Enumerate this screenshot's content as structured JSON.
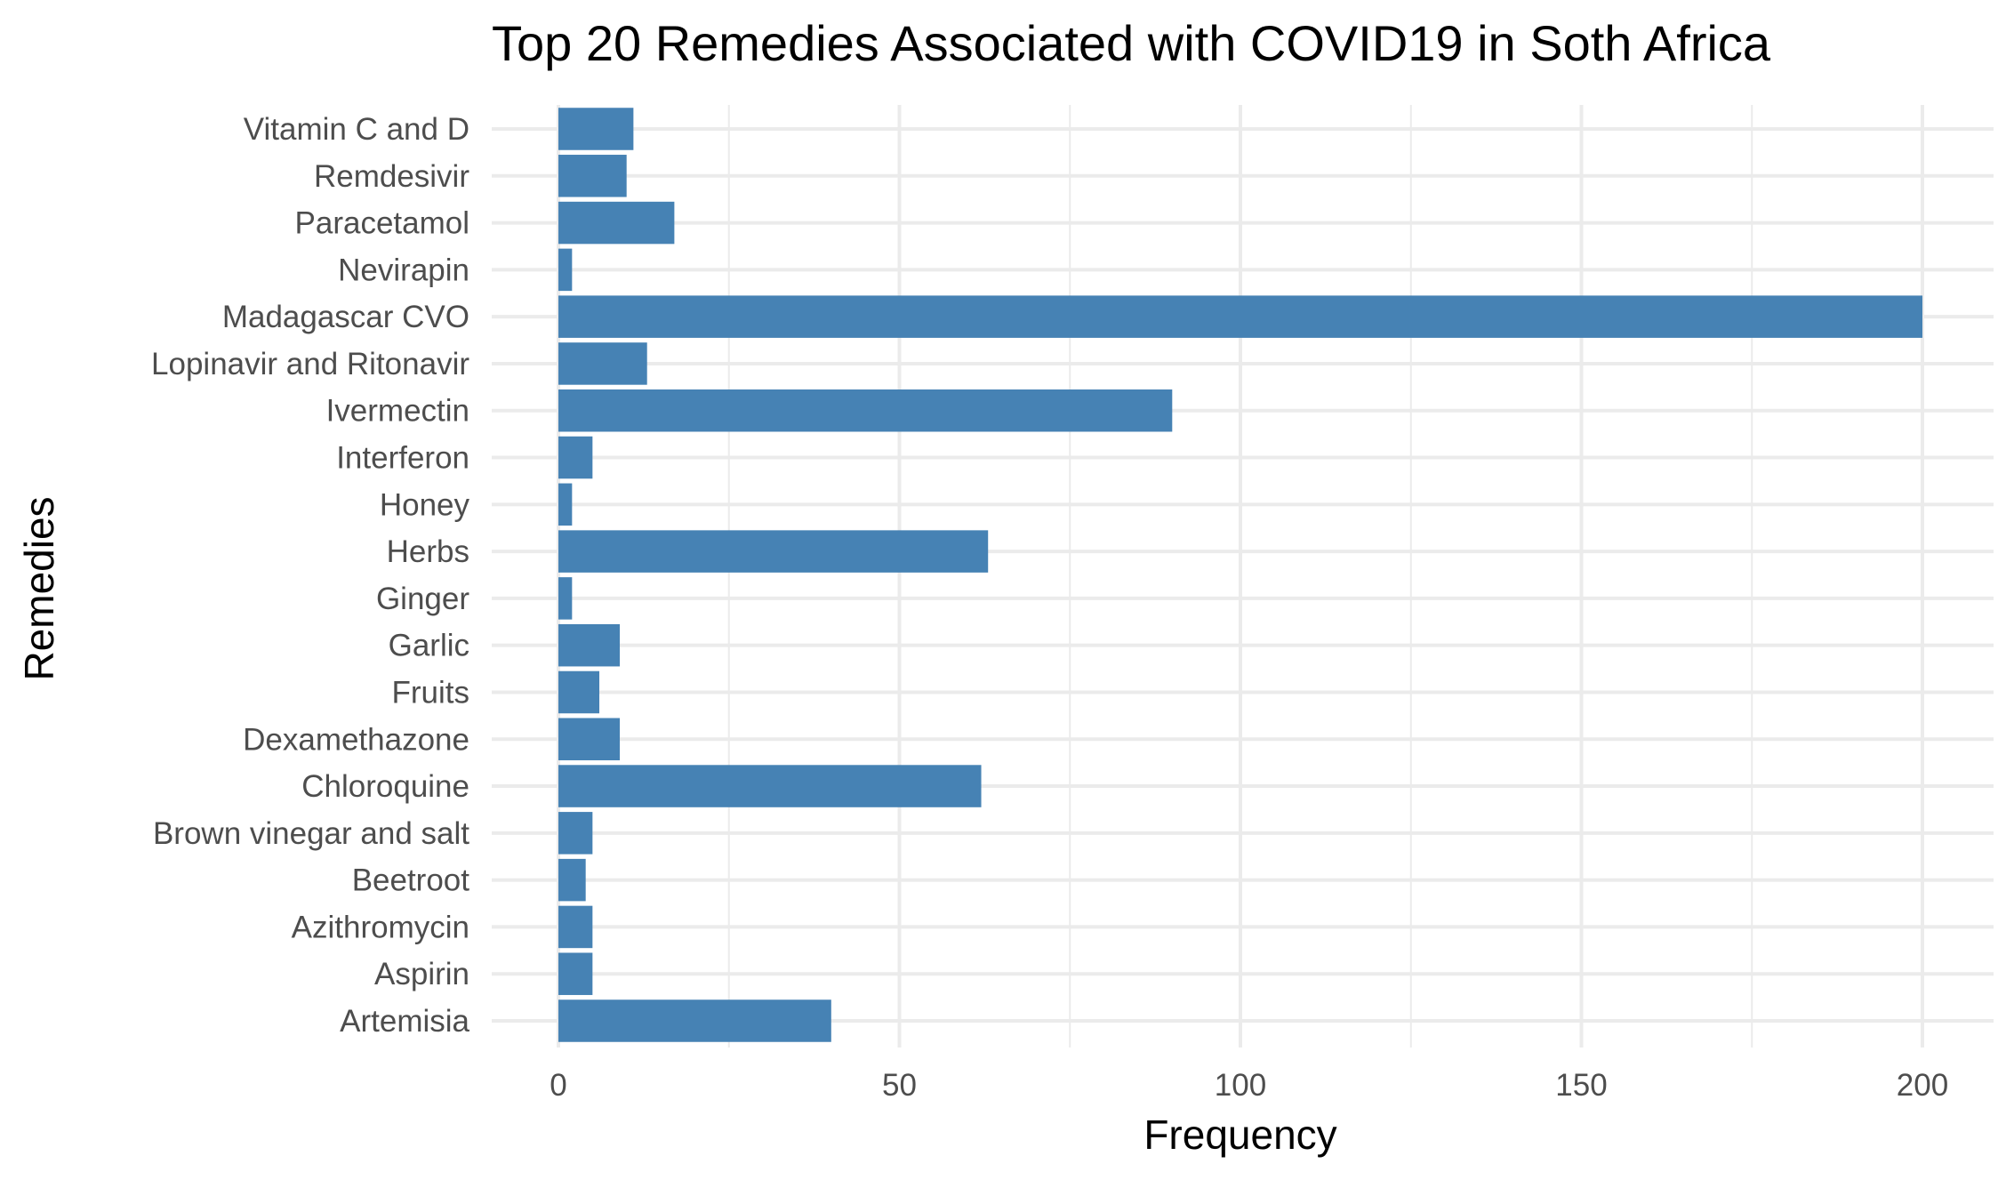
{
  "chart_data": {
    "type": "bar",
    "orientation": "horizontal",
    "title": "Top 20 Remedies Associated with COVID19 in Soth Africa",
    "xlabel": "Frequency",
    "ylabel": "Remedies",
    "xlim": [
      -10,
      210
    ],
    "x_ticks": [
      0,
      50,
      100,
      150,
      200
    ],
    "x_tick_labels": [
      "0",
      "50",
      "100",
      "150",
      "200"
    ],
    "grid": true,
    "legend": "none",
    "bar_color": "#4682b4",
    "categories": [
      "Artemisia",
      "Aspirin",
      "Azithromycin",
      "Beetroot",
      "Brown vinegar and salt",
      "Chloroquine",
      "Dexamethazone",
      "Fruits",
      "Garlic",
      "Ginger",
      "Herbs",
      "Honey",
      "Interferon",
      "Ivermectin",
      "Lopinavir and Ritonavir",
      "Madagascar CVO",
      "Nevirapin",
      "Paracetamol",
      "Remdesivir",
      "Vitamin C and D"
    ],
    "values": [
      40,
      5,
      5,
      4,
      5,
      62,
      9,
      6,
      9,
      2,
      63,
      2,
      5,
      90,
      13,
      200,
      2,
      17,
      10,
      11
    ]
  }
}
